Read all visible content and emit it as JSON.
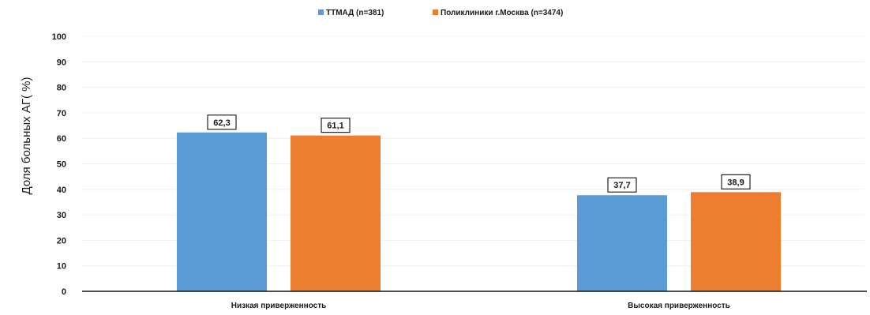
{
  "chart_data": {
    "type": "bar",
    "title": "",
    "xlabel": "",
    "ylabel": "Доля больных АГ( %)",
    "ylim": [
      0,
      100
    ],
    "yticks": [
      0,
      10,
      20,
      30,
      40,
      50,
      60,
      70,
      80,
      90,
      100
    ],
    "categories": [
      "Низкая приверженность",
      "Высокая приверженность"
    ],
    "series": [
      {
        "name": "ТТМАД (n=381)",
        "values": [
          62.3,
          37.7
        ],
        "labels": [
          "62,3",
          "37,7"
        ],
        "color": "#5b9bd5"
      },
      {
        "name": "Поликлиники г.Москва (n=3474)",
        "values": [
          61.1,
          38.9
        ],
        "labels": [
          "61,1",
          "38,9"
        ],
        "color": "#ed7d31"
      }
    ],
    "legend_position": "top-center",
    "grid": false
  }
}
